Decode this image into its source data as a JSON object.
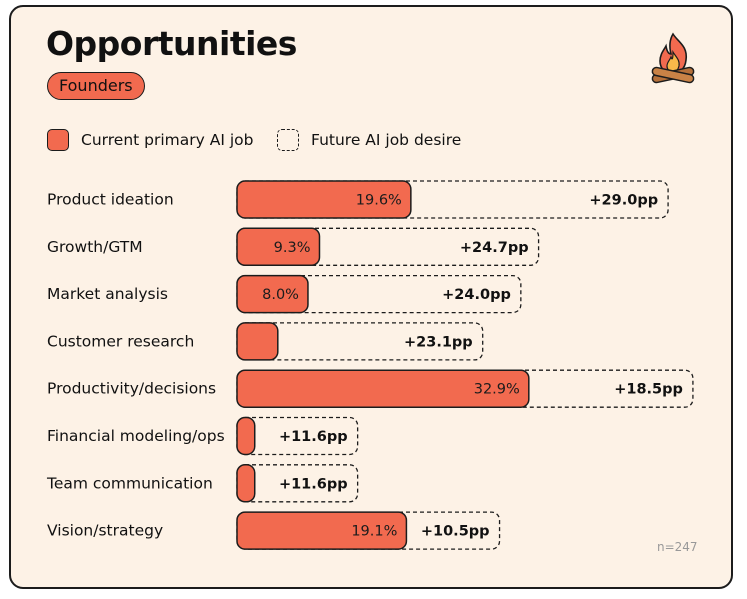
{
  "header": {
    "title": "Opportunities",
    "segment_badge": "Founders"
  },
  "legend": {
    "current_label": "Current primary AI job",
    "future_label": "Future AI job desire"
  },
  "footnote": "n=247",
  "colors": {
    "current_fill": "#f26a4f",
    "background": "#fdf2e6",
    "outline": "#1c1c1c"
  },
  "chart_data": {
    "type": "bar",
    "orientation": "horizontal",
    "stacked": true,
    "categories": [
      "Product ideation",
      "Growth/GTM",
      "Market analysis",
      "Customer research",
      "Productivity/decisions",
      "Financial modeling/ops",
      "Team communication",
      "Vision/strategy"
    ],
    "series": [
      {
        "name": "Current primary AI job",
        "values": [
          19.6,
          9.3,
          8.0,
          4.6,
          32.9,
          2.0,
          2.0,
          19.1
        ],
        "labels": [
          "19.6%",
          "9.3%",
          "8.0%",
          "",
          "32.9%",
          "",
          "",
          "19.1%"
        ]
      },
      {
        "name": "Future AI job desire",
        "values": [
          29.0,
          24.7,
          24.0,
          23.1,
          18.5,
          11.6,
          11.6,
          10.5
        ],
        "labels": [
          "+29.0pp",
          "+24.7pp",
          "+24.0pp",
          "+23.1pp",
          "+18.5pp",
          "+11.6pp",
          "+11.6pp",
          "+10.5pp"
        ]
      }
    ],
    "xlim": [
      0,
      52
    ]
  }
}
